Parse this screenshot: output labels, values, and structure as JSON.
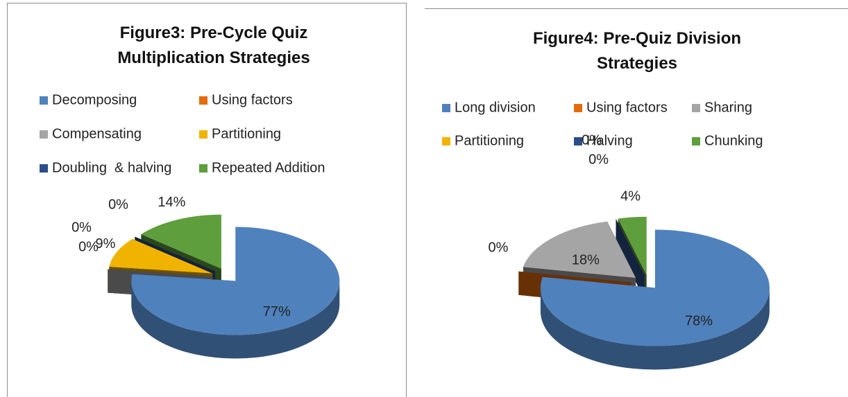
{
  "chart_data": [
    {
      "type": "pie",
      "title": "Figure3: Pre-Cycle Quiz Multiplication Strategies",
      "categories": [
        "Decomposing",
        "Using factors",
        "Compensating",
        "Partitioning",
        "Doubling  & halving",
        "Repeated Addition"
      ],
      "values": [
        77,
        0,
        0,
        9,
        0,
        14
      ],
      "value_labels": [
        "77%",
        "0%",
        "0%",
        "9%",
        "0%",
        "14%"
      ],
      "colors": [
        "#4f81bd",
        "#e46c0a",
        "#a5a5a5",
        "#f0b400",
        "#2c4d8a",
        "#5e9e3c"
      ],
      "legend": "top"
    },
    {
      "type": "pie",
      "title": "Figure4: Pre-Quiz Division Strategies",
      "categories": [
        "Long division",
        "Using factors",
        "Sharing",
        "Partitioning",
        "Halving",
        "Chunking"
      ],
      "values": [
        78,
        0,
        18,
        0,
        0,
        4
      ],
      "value_labels": [
        "78%",
        "0%",
        "18%",
        "0%",
        "0%",
        "4%"
      ],
      "colors": [
        "#4f81bd",
        "#e46c0a",
        "#a5a5a5",
        "#f0b400",
        "#2c4d8a",
        "#5e9e3c"
      ],
      "legend": "top"
    }
  ]
}
